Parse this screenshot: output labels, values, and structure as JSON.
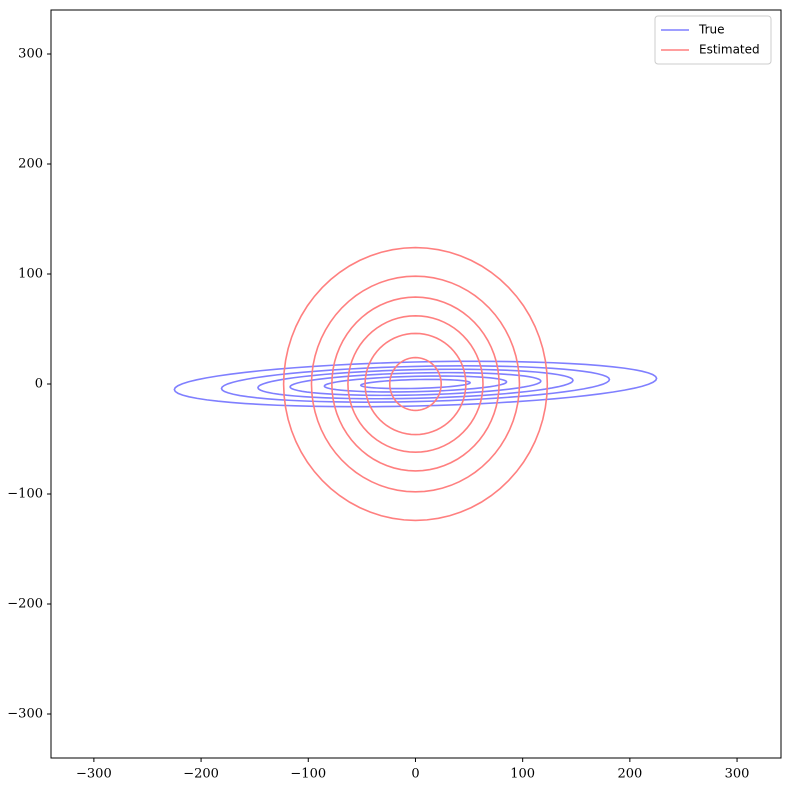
{
  "chart_data": {
    "type": "contour",
    "series": [
      {
        "name": "True",
        "color": "#7f7fff",
        "center": [
          0,
          0
        ],
        "angle": 1.3,
        "rx": [
          225,
          181,
          147,
          117,
          85,
          51
        ],
        "ry": [
          20,
          16,
          13,
          10,
          7,
          4
        ]
      },
      {
        "name": "Estimated",
        "color": "#ff7f7f",
        "center": [
          0,
          0
        ],
        "angle": 0,
        "rx": [
          123,
          97,
          78,
          63,
          47,
          24
        ],
        "ry": [
          124,
          98,
          79,
          62,
          46,
          24
        ]
      }
    ],
    "xlim": [
      -340,
      341
    ],
    "ylim": [
      -340,
      340
    ],
    "xticks": [
      {
        "value": -300,
        "label": "−300"
      },
      {
        "value": -200,
        "label": "−200"
      },
      {
        "value": -100,
        "label": "−100"
      },
      0,
      100,
      200,
      300
    ],
    "yticks": [
      {
        "value": -300,
        "label": "−300"
      },
      {
        "value": -200,
        "label": "−200"
      },
      {
        "value": -100,
        "label": "−100"
      },
      0,
      100,
      200,
      300
    ],
    "legend": "upper right"
  }
}
